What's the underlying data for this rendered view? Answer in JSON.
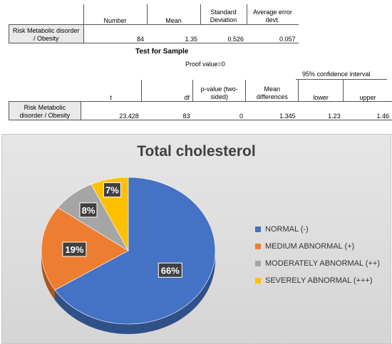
{
  "table1": {
    "headers": [
      "Number",
      "Mean",
      "Standard Deviation",
      "Average error devt."
    ],
    "row_label": "Risk Metabolic disorder / Obesity",
    "values": [
      "84",
      "1.35",
      "0.526",
      "0.057"
    ]
  },
  "table2": {
    "title": "Test for Sample",
    "proof": "Proof value=0",
    "ci_header": "95% confidence interval",
    "headers": [
      "t",
      "df",
      "p-value (two-sided)",
      "Mean differences",
      "lower",
      "upper"
    ],
    "row_label": "Risk Metabolic disorder / Obesity",
    "values": [
      "23.428",
      "83",
      "0",
      "1.345",
      "1.23",
      "1.46"
    ]
  },
  "chart_data": {
    "type": "pie",
    "title": "Total cholesterol",
    "categories": [
      "NORMAL (-)",
      "MEDIUM ABNORMAL (+)",
      "MODERATELY ABNORMAL (++)",
      "SEVERELY ABNORMAL (+++)"
    ],
    "values": [
      66,
      19,
      8,
      7
    ],
    "labels": [
      "66%",
      "19%",
      "8%",
      "7%"
    ],
    "colors": [
      "#4472c4",
      "#ed7d31",
      "#a5a5a5",
      "#ffc000"
    ],
    "legend_position": "right"
  }
}
